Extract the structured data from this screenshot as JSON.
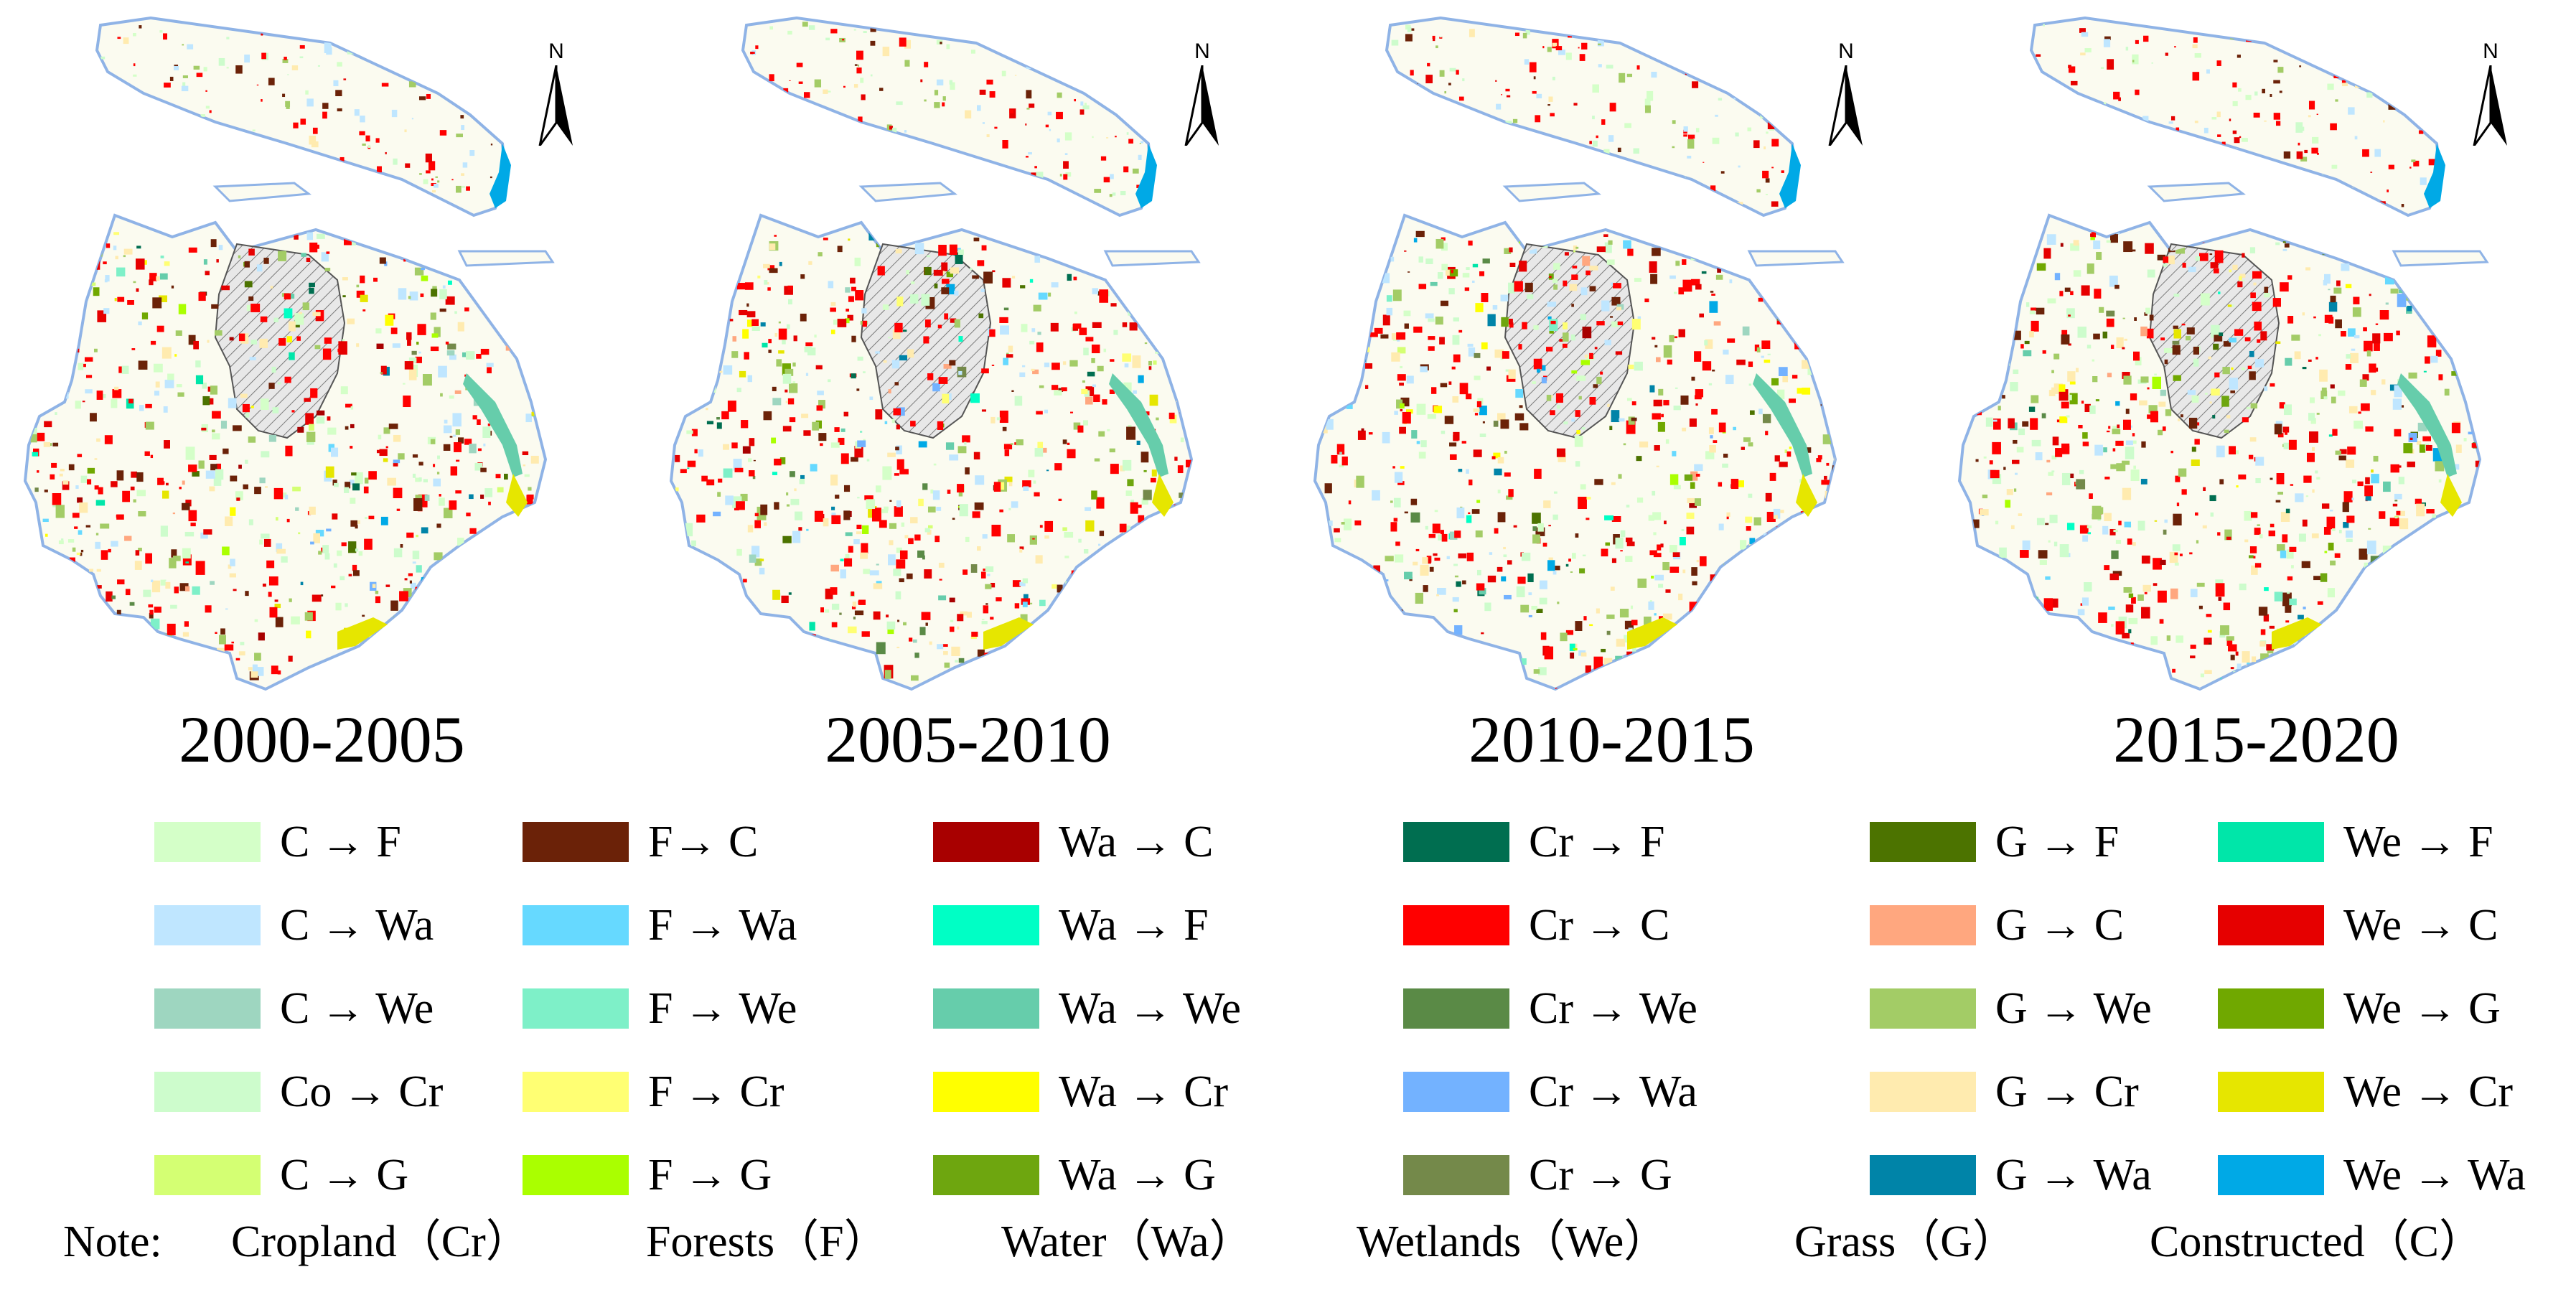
{
  "panels": [
    {
      "period": "2000-2005"
    },
    {
      "period": "2005-2010"
    },
    {
      "period": "2010-2015"
    },
    {
      "period": "2015-2020"
    }
  ],
  "north_arrow": {
    "label": "N"
  },
  "legend": {
    "columns": [
      [
        {
          "label": "C → F",
          "color": "#d4ffc8"
        },
        {
          "label": "C → Wa",
          "color": "#bfe6ff"
        },
        {
          "label": "C → We",
          "color": "#9ed6c0"
        },
        {
          "label": "Co → Cr",
          "color": "#cdfccc"
        },
        {
          "label": "C → G",
          "color": "#d4ff73"
        }
      ],
      [
        {
          "label": "F→ C",
          "color": "#6b2208"
        },
        {
          "label": "F → Wa",
          "color": "#66d9ff"
        },
        {
          "label": "F → We",
          "color": "#7ef0c8"
        },
        {
          "label": "F → Cr",
          "color": "#ffff73"
        },
        {
          "label": "F → G",
          "color": "#aaff00"
        }
      ],
      [
        {
          "label": "Wa → C",
          "color": "#a80000"
        },
        {
          "label": "Wa → F",
          "color": "#00ffc5"
        },
        {
          "label": "Wa → We",
          "color": "#66cdab"
        },
        {
          "label": "Wa → Cr",
          "color": "#ffff00"
        },
        {
          "label": "Wa → G",
          "color": "#6ea60f"
        }
      ],
      [
        {
          "label": "Cr → F",
          "color": "#006e50"
        },
        {
          "label": "Cr  → C",
          "color": "#ff0000"
        },
        {
          "label": "Cr  → We",
          "color": "#5a8a46"
        },
        {
          "label": "Cr  → Wa",
          "color": "#73b2ff"
        },
        {
          "label": "Cr  → G",
          "color": "#74894a"
        }
      ],
      [
        {
          "label": "G → F",
          "color": "#4c7300"
        },
        {
          "label": "G → C",
          "color": "#ffa77f"
        },
        {
          "label": "G → We",
          "color": "#a3cc66"
        },
        {
          "label": "G → Cr",
          "color": "#ffebaf"
        },
        {
          "label": "G → Wa",
          "color": "#0084a8"
        }
      ],
      [
        {
          "label": "We → F",
          "color": "#00e6a9"
        },
        {
          "label": "We → C",
          "color": "#e60000"
        },
        {
          "label": "We → G",
          "color": "#70a800"
        },
        {
          "label": "We → Cr",
          "color": "#e6e600"
        },
        {
          "label": "We → Wa",
          "color": "#00a9e6"
        }
      ]
    ]
  },
  "note": {
    "prefix": "Note:",
    "items": [
      "Cropland（Cr）",
      "Forests（F）",
      "Water（Wa）",
      "Wetlands（We）",
      "Grass（G）",
      "Constructed（C）"
    ]
  },
  "colors": {
    "boundary": "#8fb3e6",
    "base": "#fbfbf0",
    "urban_core": "#e8e8e8",
    "hatch": "#7a7a7a"
  }
}
